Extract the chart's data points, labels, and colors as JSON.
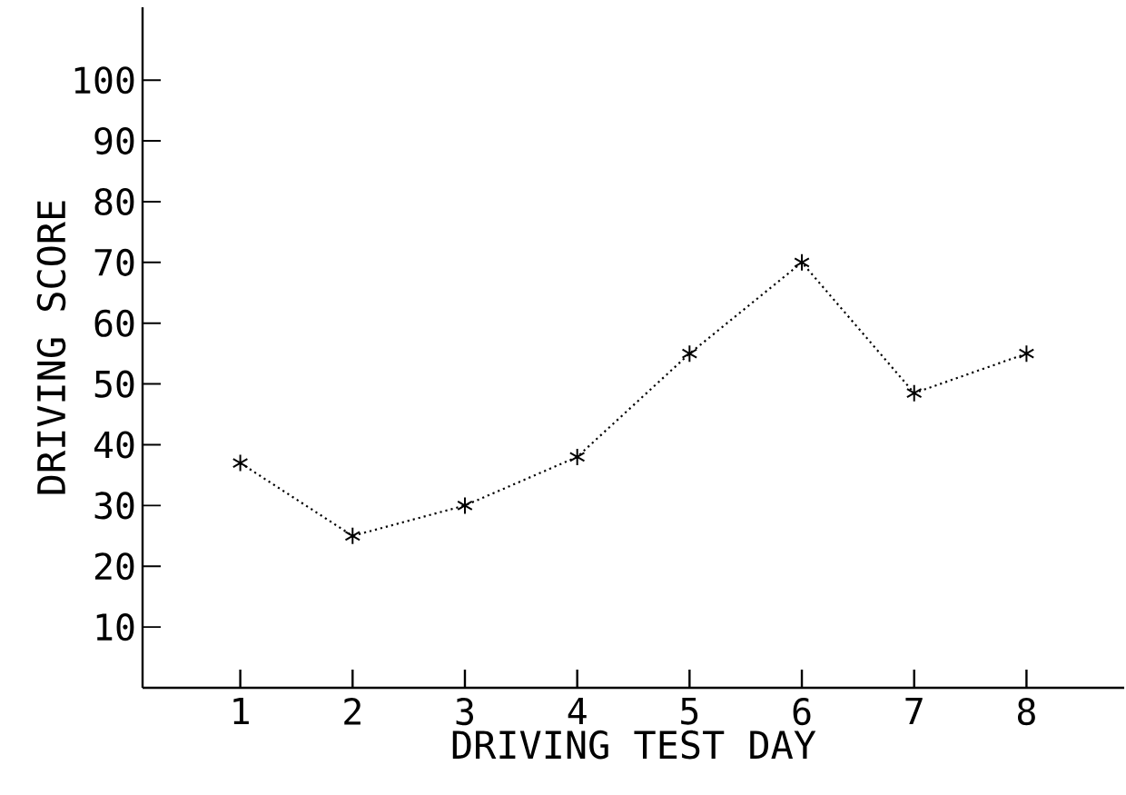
{
  "chart_data": {
    "type": "line",
    "xlabel": "DRIVING TEST DAY",
    "ylabel": "DRIVING SCORE",
    "x": [
      1,
      2,
      3,
      4,
      5,
      6,
      7,
      8
    ],
    "values": [
      37,
      25,
      30,
      38,
      55,
      70,
      48.5,
      55
    ],
    "color": "#000000",
    "marker": "cross",
    "line_style": "dotted",
    "grid": false,
    "xlim": [
      0.13,
      8.87
    ],
    "ylim": [
      0,
      112
    ],
    "xticks": [
      1,
      2,
      3,
      4,
      5,
      6,
      7,
      8
    ],
    "yticks": [
      10,
      20,
      30,
      40,
      50,
      60,
      70,
      80,
      90,
      100
    ]
  }
}
